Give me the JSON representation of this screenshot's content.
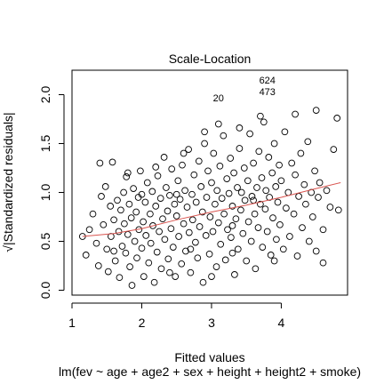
{
  "chart_data": {
    "type": "scatter",
    "title": "Scale-Location",
    "xlabel": "Fitted values",
    "ylabel": "√|Standardized residuals|",
    "subtitle": "lm(fev ~ age + age2 + sex + height + height2 + smoke)",
    "xlim": [
      1.0,
      4.95
    ],
    "ylim": [
      -0.05,
      2.25
    ],
    "x_ticks": [
      1,
      2,
      3,
      4
    ],
    "y_ticks": [
      0.0,
      0.5,
      1.0,
      1.5,
      2.0
    ],
    "x_tick_labels": [
      "1",
      "2",
      "3",
      "4"
    ],
    "y_tick_labels": [
      "0.0",
      "0.5",
      "1.0",
      "1.5",
      "2.0"
    ],
    "grid": false,
    "colors": {
      "points": "#000000",
      "smooth": "#d9544f",
      "frame": "#000000"
    },
    "labeled_points": [
      {
        "label": "20",
        "x": 3.1,
        "y": 1.97
      },
      {
        "label": "624",
        "x": 3.8,
        "y": 2.15
      },
      {
        "label": "473",
        "x": 3.8,
        "y": 2.03
      }
    ],
    "smooth_line": {
      "x": [
        1.15,
        1.6,
        2.0,
        2.5,
        3.0,
        3.5,
        4.0,
        4.5,
        4.85
      ],
      "y": [
        0.55,
        0.58,
        0.63,
        0.72,
        0.8,
        0.87,
        0.95,
        1.04,
        1.1
      ]
    },
    "points": [
      [
        1.15,
        0.55
      ],
      [
        1.2,
        0.36
      ],
      [
        1.25,
        0.62
      ],
      [
        1.3,
        0.78
      ],
      [
        1.35,
        0.48
      ],
      [
        1.38,
        0.25
      ],
      [
        1.42,
        0.96
      ],
      [
        1.45,
        0.67
      ],
      [
        1.48,
        1.06
      ],
      [
        1.5,
        0.42
      ],
      [
        1.52,
        0.19
      ],
      [
        1.55,
        0.86
      ],
      [
        1.56,
        0.55
      ],
      [
        1.58,
        1.31
      ],
      [
        1.6,
        0.72
      ],
      [
        1.62,
        0.3
      ],
      [
        1.65,
        0.92
      ],
      [
        1.67,
        0.6
      ],
      [
        1.68,
        0.13
      ],
      [
        1.7,
        0.82
      ],
      [
        1.72,
        0.45
      ],
      [
        1.74,
        1.0
      ],
      [
        1.75,
        0.68
      ],
      [
        1.77,
        0.38
      ],
      [
        1.78,
        1.16
      ],
      [
        1.8,
        0.57
      ],
      [
        1.82,
        0.88
      ],
      [
        1.83,
        0.24
      ],
      [
        1.85,
        0.74
      ],
      [
        1.86,
        0.05
      ],
      [
        1.88,
        1.04
      ],
      [
        1.9,
        0.5
      ],
      [
        1.92,
        0.8
      ],
      [
        1.93,
        0.33
      ],
      [
        1.95,
        0.95
      ],
      [
        1.96,
        0.62
      ],
      [
        1.98,
        1.22
      ],
      [
        2.0,
        0.43
      ],
      [
        2.02,
        0.7
      ],
      [
        2.03,
        0.14
      ],
      [
        2.05,
        0.9
      ],
      [
        2.06,
        0.56
      ],
      [
        2.08,
        1.1
      ],
      [
        2.1,
        0.28
      ],
      [
        2.12,
        0.78
      ],
      [
        2.13,
        0.48
      ],
      [
        2.15,
        1.01
      ],
      [
        2.16,
        0.66
      ],
      [
        2.18,
        0.08
      ],
      [
        2.2,
        0.86
      ],
      [
        2.22,
        0.39
      ],
      [
        2.23,
        1.17
      ],
      [
        2.25,
        0.6
      ],
      [
        2.27,
        0.94
      ],
      [
        2.28,
        0.22
      ],
      [
        2.3,
        0.73
      ],
      [
        2.32,
        1.36
      ],
      [
        2.33,
        0.52
      ],
      [
        2.35,
        1.05
      ],
      [
        2.37,
        0.81
      ],
      [
        2.38,
        0.32
      ],
      [
        2.4,
        0.97
      ],
      [
        2.42,
        0.63
      ],
      [
        2.43,
        1.24
      ],
      [
        2.45,
        0.44
      ],
      [
        2.47,
        0.88
      ],
      [
        2.48,
        0.14
      ],
      [
        2.5,
        0.76
      ],
      [
        2.52,
        1.12
      ],
      [
        2.53,
        0.55
      ],
      [
        2.55,
        0.93
      ],
      [
        2.57,
        0.27
      ],
      [
        2.58,
        1.28
      ],
      [
        2.6,
        0.68
      ],
      [
        2.62,
        1.02
      ],
      [
        2.63,
        0.4
      ],
      [
        2.65,
        0.85
      ],
      [
        2.67,
        1.44
      ],
      [
        2.68,
        0.59
      ],
      [
        2.7,
        0.18
      ],
      [
        2.72,
        0.98
      ],
      [
        2.73,
        0.72
      ],
      [
        2.75,
        1.18
      ],
      [
        2.77,
        0.49
      ],
      [
        2.78,
        0.9
      ],
      [
        2.8,
        0.33
      ],
      [
        2.82,
        1.32
      ],
      [
        2.83,
        0.65
      ],
      [
        2.85,
        1.06
      ],
      [
        2.87,
        0.8
      ],
      [
        2.88,
        0.08
      ],
      [
        2.9,
        1.5
      ],
      [
        2.92,
        0.56
      ],
      [
        2.93,
        0.95
      ],
      [
        2.95,
        1.22
      ],
      [
        2.97,
        0.37
      ],
      [
        2.98,
        0.75
      ],
      [
        3.0,
        1.1
      ],
      [
        3.02,
        0.6
      ],
      [
        3.03,
        1.4
      ],
      [
        3.05,
        0.88
      ],
      [
        3.07,
        0.24
      ],
      [
        3.08,
        1.02
      ],
      [
        3.1,
        0.69
      ],
      [
        3.12,
        1.27
      ],
      [
        3.13,
        0.47
      ],
      [
        3.15,
        0.94
      ],
      [
        3.17,
        1.58
      ],
      [
        3.18,
        0.78
      ],
      [
        3.2,
        0.31
      ],
      [
        3.22,
        1.14
      ],
      [
        3.23,
        0.62
      ],
      [
        3.25,
        0.99
      ],
      [
        3.27,
        1.35
      ],
      [
        3.28,
        0.54
      ],
      [
        3.3,
        0.86
      ],
      [
        3.32,
        1.2
      ],
      [
        3.33,
        0.16
      ],
      [
        3.35,
        0.73
      ],
      [
        3.37,
        1.05
      ],
      [
        3.38,
        0.42
      ],
      [
        3.4,
        1.45
      ],
      [
        3.42,
        0.82
      ],
      [
        3.43,
        1.0
      ],
      [
        3.45,
        0.58
      ],
      [
        3.47,
        1.25
      ],
      [
        3.48,
        0.92
      ],
      [
        3.5,
        0.3
      ],
      [
        3.52,
        1.12
      ],
      [
        3.53,
        0.7
      ],
      [
        3.55,
        1.6
      ],
      [
        3.57,
        0.5
      ],
      [
        3.58,
        0.96
      ],
      [
        3.6,
        1.3
      ],
      [
        3.62,
        0.78
      ],
      [
        3.63,
        0.22
      ],
      [
        3.65,
        1.05
      ],
      [
        3.67,
        0.64
      ],
      [
        3.68,
        1.42
      ],
      [
        3.7,
        0.88
      ],
      [
        3.72,
        1.15
      ],
      [
        3.73,
        0.44
      ],
      [
        3.75,
        1.72
      ],
      [
        3.77,
        0.83
      ],
      [
        3.78,
        1.02
      ],
      [
        3.8,
        0.6
      ],
      [
        3.82,
        1.36
      ],
      [
        3.83,
        0.95
      ],
      [
        3.85,
        0.36
      ],
      [
        3.87,
        1.2
      ],
      [
        3.88,
        0.74
      ],
      [
        3.9,
        1.5
      ],
      [
        3.92,
        1.06
      ],
      [
        3.93,
        0.52
      ],
      [
        3.95,
        0.9
      ],
      [
        3.97,
        1.28
      ],
      [
        3.98,
        0.67
      ],
      [
        4.0,
        1.12
      ],
      [
        4.03,
        0.42
      ],
      [
        4.05,
        1.62
      ],
      [
        4.07,
        0.84
      ],
      [
        4.1,
        1.0
      ],
      [
        4.12,
        0.55
      ],
      [
        4.15,
        1.3
      ],
      [
        4.18,
        0.78
      ],
      [
        4.2,
        1.18
      ],
      [
        4.23,
        0.35
      ],
      [
        4.25,
        0.96
      ],
      [
        4.28,
        1.4
      ],
      [
        4.3,
        0.64
      ],
      [
        4.33,
        1.08
      ],
      [
        4.35,
        0.88
      ],
      [
        4.38,
        1.52
      ],
      [
        4.4,
        0.5
      ],
      [
        4.43,
        1.0
      ],
      [
        4.45,
        0.75
      ],
      [
        4.48,
        1.22
      ],
      [
        4.5,
        0.4
      ],
      [
        4.53,
        0.95
      ],
      [
        4.55,
        1.1
      ],
      [
        4.6,
        0.62
      ],
      [
        4.65,
        1.02
      ],
      [
        4.7,
        0.85
      ],
      [
        4.75,
        1.44
      ],
      [
        4.8,
        1.76
      ],
      [
        4.82,
        0.82
      ],
      [
        4.5,
        1.84
      ],
      [
        4.2,
        1.8
      ],
      [
        1.8,
        1.2
      ],
      [
        2.2,
        1.26
      ],
      [
        2.6,
        1.4
      ],
      [
        2.9,
        1.62
      ],
      [
        3.1,
        1.7
      ],
      [
        3.4,
        1.66
      ],
      [
        3.7,
        1.78
      ],
      [
        1.4,
        1.3
      ],
      [
        2.0,
        0.98
      ],
      [
        2.5,
        0.98
      ],
      [
        3.3,
        0.66
      ],
      [
        3.6,
        0.92
      ],
      [
        1.6,
        0.4
      ],
      [
        2.4,
        0.18
      ],
      [
        2.7,
        0.42
      ],
      [
        3.0,
        0.14
      ],
      [
        3.3,
        0.38
      ],
      [
        3.9,
        0.3
      ],
      [
        4.6,
        0.28
      ]
    ]
  }
}
